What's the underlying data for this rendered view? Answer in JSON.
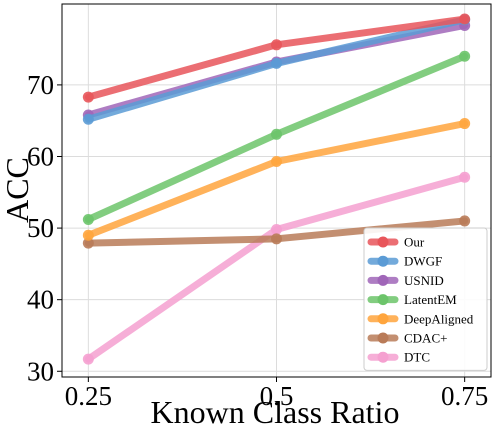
{
  "chart_data": {
    "type": "line",
    "xlabel": "Known Class Ratio",
    "ylabel": "ACC",
    "x": [
      0.25,
      0.5,
      0.75
    ],
    "x_tick_labels": [
      "0.25",
      "0.5",
      "0.75"
    ],
    "y_ticks": [
      30,
      40,
      50,
      60,
      70
    ],
    "xlim": [
      0.215,
      0.785
    ],
    "ylim": [
      29.2,
      81.3
    ],
    "grid": true,
    "legend_position": "lower-right",
    "series": [
      {
        "name": "Our",
        "color": "#e8555a",
        "values": [
          68.3,
          75.6,
          79.2
        ]
      },
      {
        "name": "DWGF",
        "color": "#5b9bd5",
        "values": [
          65.2,
          73.0,
          79.1
        ]
      },
      {
        "name": "USNID",
        "color": "#a066b8",
        "values": [
          65.8,
          73.2,
          78.3
        ]
      },
      {
        "name": "LatentEM",
        "color": "#6cc46a",
        "values": [
          51.2,
          63.1,
          74.0
        ]
      },
      {
        "name": "DeepAligned",
        "color": "#ffa53d",
        "values": [
          49.0,
          59.3,
          64.6
        ]
      },
      {
        "name": "CDAC+",
        "color": "#b97b58",
        "values": [
          47.9,
          48.5,
          51.0
        ]
      },
      {
        "name": "DTC",
        "color": "#f5a0d0",
        "values": [
          31.7,
          49.8,
          57.1
        ]
      }
    ]
  }
}
